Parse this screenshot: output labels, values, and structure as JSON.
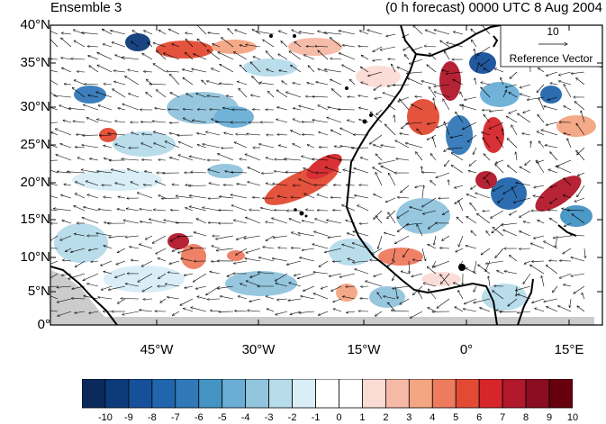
{
  "header": {
    "left_title": "Ensemble 3",
    "right_title": "(0 h forecast) 0000 UTC 8 Aug 2004"
  },
  "map": {
    "lat_labels": [
      "40°N",
      "35°N",
      "30°N",
      "25°N",
      "20°N",
      "15°N",
      "10°N",
      "5°N",
      "0°"
    ],
    "lon_labels": [
      "45°W",
      "30°W",
      "15°W",
      "0°",
      "15°E"
    ],
    "lat_range": [
      0,
      40
    ],
    "lon_range": [
      -58,
      18
    ],
    "land_color": "#cccccc",
    "coast_color": "#000000"
  },
  "reference_vector": {
    "magnitude": "10",
    "label": "Reference Vector"
  },
  "colorbar": {
    "labels": [
      "-10",
      "-9",
      "-8",
      "-7",
      "-6",
      "-5",
      "-4",
      "-3",
      "-2",
      "-1",
      "0",
      "1",
      "2",
      "3",
      "4",
      "5",
      "6",
      "7",
      "8",
      "9",
      "10"
    ],
    "colors": [
      "#0a2a5e",
      "#0d3b7a",
      "#17509a",
      "#2166ac",
      "#3178b8",
      "#4393c3",
      "#6aaed6",
      "#92c5de",
      "#b7dcea",
      "#d9eef7",
      "#ffffff",
      "#ffffff",
      "#fbdcd5",
      "#f6b9a6",
      "#f4a582",
      "#ee7b5e",
      "#e34a33",
      "#d6262b",
      "#b2182b",
      "#8a0d22",
      "#67000d"
    ]
  }
}
